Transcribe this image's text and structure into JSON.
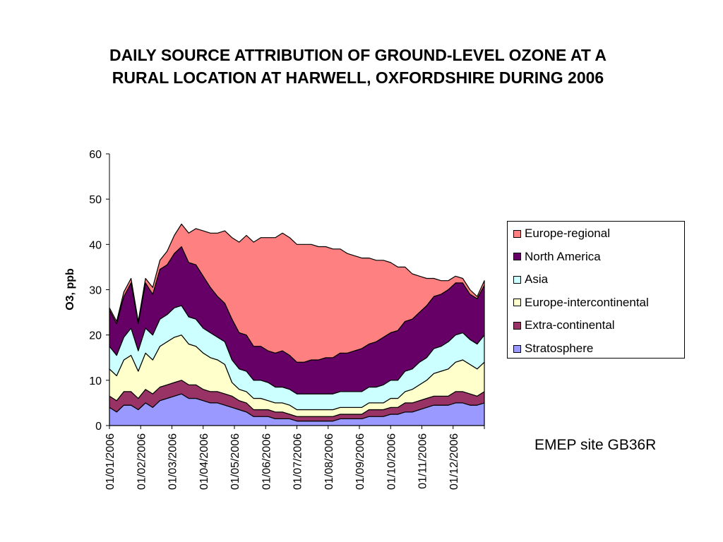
{
  "title": {
    "line1": "DAILY SOURCE ATTRIBUTION OF GROUND-LEVEL OZONE AT A",
    "line2": "RURAL LOCATION AT HARWELL, OXFORDSHIRE DURING 2006"
  },
  "note": "EMEP site GB36R",
  "chart_data": {
    "type": "area",
    "stacked": true,
    "ylabel": "O3, ppb",
    "xlabel": "",
    "ylim": [
      0,
      60
    ],
    "yticks": [
      0,
      10,
      20,
      30,
      40,
      50,
      60
    ],
    "x_tick_labels": [
      "01/01/2006",
      "01/02/2006",
      "01/03/2006",
      "01/04/2006",
      "01/05/2006",
      "01/06/2006",
      "01/07/2006",
      "01/08/2006",
      "01/09/2006",
      "01/10/2006",
      "01/11/2006",
      "01/12/2006"
    ],
    "x_start": "01/01/2006",
    "x_end": "31/12/2006",
    "x_step": "7 days",
    "legend_position": "right",
    "grid": false,
    "series": [
      {
        "name": "Stratosphere",
        "color": "#9999ff",
        "values": [
          4.0,
          3.0,
          4.5,
          4.5,
          3.5,
          5.0,
          4.0,
          5.5,
          6.0,
          6.5,
          7.0,
          6.0,
          6.0,
          5.5,
          5.0,
          5.0,
          4.5,
          4.0,
          3.5,
          3.0,
          2.0,
          2.0,
          2.0,
          1.5,
          1.5,
          1.5,
          1.0,
          1.0,
          1.0,
          1.0,
          1.0,
          1.0,
          1.5,
          1.5,
          1.5,
          1.5,
          2.0,
          2.0,
          2.0,
          2.5,
          2.5,
          3.0,
          3.0,
          3.5,
          4.0,
          4.5,
          4.5,
          4.5,
          5.0,
          5.0,
          4.5,
          4.5,
          5.0
        ]
      },
      {
        "name": "Extra-continental",
        "color": "#993366",
        "values": [
          2.5,
          2.5,
          3.0,
          3.0,
          2.5,
          3.0,
          3.0,
          3.0,
          3.0,
          3.0,
          3.0,
          3.0,
          3.0,
          2.5,
          2.5,
          2.5,
          2.5,
          2.5,
          2.0,
          2.0,
          1.5,
          1.5,
          1.5,
          1.5,
          1.5,
          1.0,
          1.0,
          1.0,
          1.0,
          1.0,
          1.0,
          1.0,
          1.0,
          1.0,
          1.0,
          1.0,
          1.5,
          1.5,
          1.5,
          1.5,
          1.5,
          2.0,
          2.0,
          2.0,
          2.0,
          2.0,
          2.0,
          2.0,
          2.5,
          2.5,
          2.5,
          2.0,
          2.5
        ]
      },
      {
        "name": "Europe-intercontinental",
        "color": "#ffffcc",
        "values": [
          6.0,
          5.5,
          7.0,
          8.0,
          6.0,
          8.0,
          7.5,
          9.0,
          9.5,
          10.0,
          10.0,
          9.0,
          8.5,
          8.0,
          7.5,
          7.0,
          6.5,
          3.0,
          2.5,
          2.5,
          2.5,
          2.5,
          2.0,
          2.0,
          2.0,
          2.0,
          1.5,
          1.5,
          1.5,
          1.5,
          1.5,
          1.5,
          1.5,
          1.5,
          1.5,
          1.5,
          1.5,
          1.5,
          1.5,
          2.0,
          2.0,
          2.5,
          3.0,
          3.5,
          4.0,
          5.0,
          5.5,
          6.0,
          6.5,
          7.0,
          6.5,
          6.0,
          6.5
        ]
      },
      {
        "name": "Asia",
        "color": "#ccffff",
        "values": [
          5.0,
          4.5,
          5.0,
          6.0,
          4.5,
          5.5,
          5.5,
          6.0,
          6.0,
          6.5,
          6.5,
          6.0,
          6.0,
          5.5,
          5.5,
          5.0,
          5.0,
          5.0,
          4.5,
          4.5,
          4.0,
          4.0,
          4.0,
          3.5,
          3.5,
          3.5,
          3.5,
          3.5,
          3.5,
          3.5,
          3.5,
          3.5,
          3.5,
          3.5,
          3.5,
          3.5,
          3.5,
          3.5,
          4.0,
          4.0,
          4.0,
          4.5,
          4.5,
          5.0,
          5.0,
          5.5,
          5.5,
          6.0,
          6.0,
          6.0,
          5.5,
          5.5,
          6.0
        ]
      },
      {
        "name": "North America",
        "color": "#660066",
        "values": [
          8.0,
          7.0,
          9.0,
          10.0,
          6.0,
          10.0,
          9.0,
          11.0,
          11.0,
          12.0,
          13.0,
          12.0,
          12.0,
          11.5,
          10.0,
          9.0,
          8.5,
          9.0,
          8.0,
          8.0,
          7.5,
          7.5,
          7.0,
          7.5,
          8.0,
          7.5,
          7.0,
          7.0,
          7.5,
          7.5,
          8.0,
          8.0,
          8.5,
          8.5,
          9.0,
          9.5,
          9.5,
          10.0,
          10.5,
          10.5,
          11.0,
          11.0,
          11.0,
          11.0,
          11.5,
          11.5,
          11.5,
          11.5,
          11.5,
          11.0,
          10.0,
          10.0,
          11.0
        ]
      },
      {
        "name": "Europe-regional",
        "color": "#ff8080",
        "values": [
          0.5,
          0.5,
          1.0,
          1.0,
          0.5,
          1.0,
          1.5,
          2.0,
          3.0,
          4.0,
          5.0,
          6.5,
          8.0,
          10.0,
          12.0,
          14.0,
          16.0,
          18.0,
          20.0,
          22.0,
          23.0,
          24.0,
          25.0,
          25.5,
          26.0,
          26.0,
          26.0,
          26.0,
          25.5,
          25.0,
          24.5,
          24.0,
          23.0,
          22.0,
          21.0,
          20.0,
          19.0,
          18.0,
          17.0,
          15.5,
          14.0,
          12.0,
          10.0,
          8.0,
          6.0,
          4.0,
          3.0,
          2.0,
          1.5,
          1.0,
          1.0,
          0.5,
          1.0
        ]
      }
    ]
  }
}
